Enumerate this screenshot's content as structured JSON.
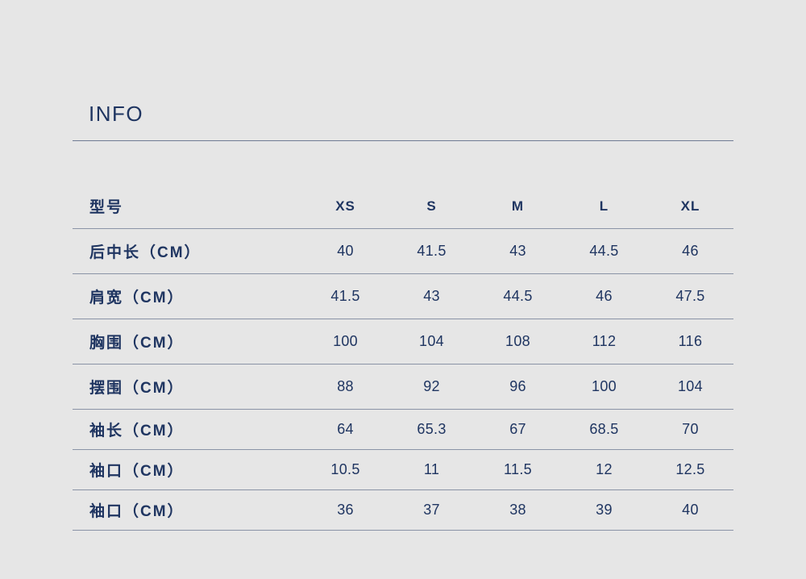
{
  "title": "INFO",
  "table": {
    "header": {
      "label": "型号",
      "sizes": [
        "XS",
        "S",
        "M",
        "L",
        "XL"
      ]
    },
    "rows": [
      {
        "label": "后中长（CM）",
        "values": [
          "40",
          "41.5",
          "43",
          "44.5",
          "46"
        ]
      },
      {
        "label": "肩宽（CM）",
        "values": [
          "41.5",
          "43",
          "44.5",
          "46",
          "47.5"
        ]
      },
      {
        "label": "胸围（CM）",
        "values": [
          "100",
          "104",
          "108",
          "112",
          "116"
        ]
      },
      {
        "label": "摆围（CM）",
        "values": [
          "88",
          "92",
          "96",
          "100",
          "104"
        ]
      },
      {
        "label": "袖长（CM）",
        "values": [
          "64",
          "65.3",
          "67",
          "68.5",
          "70"
        ]
      },
      {
        "label": "袖口（CM）",
        "values": [
          "10.5",
          "11",
          "11.5",
          "12",
          "12.5"
        ]
      },
      {
        "label": "袖口（CM）",
        "values": [
          "36",
          "37",
          "38",
          "39",
          "40"
        ]
      }
    ]
  }
}
